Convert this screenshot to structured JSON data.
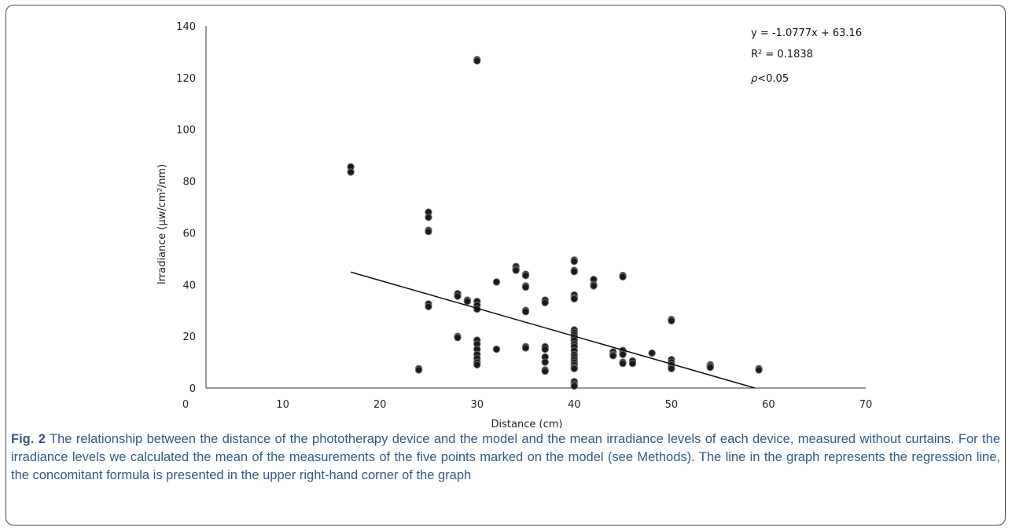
{
  "chart_data": {
    "type": "scatter",
    "title": "",
    "xlabel": "Distance (cm)",
    "ylabel": "Irradiance (µw/cm²/nm)",
    "xlim": [
      0,
      70
    ],
    "ylim": [
      0,
      140
    ],
    "x_ticks": [
      "0",
      "10",
      "20",
      "30",
      "40",
      "50",
      "60",
      "70"
    ],
    "y_ticks": [
      "0",
      "20",
      "40",
      "60",
      "80",
      "100",
      "120",
      "140"
    ],
    "grid": false,
    "legend": "none",
    "points": [
      [
        17,
        85.5
      ],
      [
        17,
        83.5
      ],
      [
        24,
        7.5
      ],
      [
        24,
        7
      ],
      [
        25,
        68
      ],
      [
        25,
        66
      ],
      [
        25,
        61
      ],
      [
        25,
        60.5
      ],
      [
        25,
        32.5
      ],
      [
        25,
        31.5
      ],
      [
        28,
        36.5
      ],
      [
        28,
        35.5
      ],
      [
        28,
        20
      ],
      [
        28,
        19.5
      ],
      [
        29,
        34
      ],
      [
        29,
        33.5
      ],
      [
        30,
        127
      ],
      [
        30,
        126.5
      ],
      [
        30,
        33.5
      ],
      [
        30,
        32
      ],
      [
        30,
        30.5
      ],
      [
        30,
        18.5
      ],
      [
        30,
        17
      ],
      [
        30,
        15
      ],
      [
        30,
        13
      ],
      [
        30,
        11.5
      ],
      [
        30,
        10
      ],
      [
        30,
        9
      ],
      [
        32,
        41
      ],
      [
        32,
        15
      ],
      [
        34,
        47
      ],
      [
        34,
        46
      ],
      [
        34,
        45.5
      ],
      [
        35,
        44
      ],
      [
        35,
        43.5
      ],
      [
        35,
        39.5
      ],
      [
        35,
        39
      ],
      [
        35,
        30
      ],
      [
        35,
        29.5
      ],
      [
        35,
        16
      ],
      [
        35,
        15.5
      ],
      [
        37,
        34
      ],
      [
        37,
        33
      ],
      [
        37,
        16
      ],
      [
        37,
        15
      ],
      [
        37,
        12
      ],
      [
        37,
        10
      ],
      [
        37,
        7
      ],
      [
        37,
        6.5
      ],
      [
        40,
        49.5
      ],
      [
        40,
        49
      ],
      [
        40,
        45.5
      ],
      [
        40,
        45
      ],
      [
        40,
        36
      ],
      [
        40,
        35
      ],
      [
        40,
        34.5
      ],
      [
        40,
        22.5
      ],
      [
        40,
        21.5
      ],
      [
        40,
        20.5
      ],
      [
        40,
        19.5
      ],
      [
        40,
        18.5
      ],
      [
        40,
        17
      ],
      [
        40,
        16
      ],
      [
        40,
        14.5
      ],
      [
        40,
        13
      ],
      [
        40,
        12
      ],
      [
        40,
        11
      ],
      [
        40,
        10
      ],
      [
        40,
        9
      ],
      [
        40,
        8
      ],
      [
        40,
        7.5
      ],
      [
        40,
        2.5
      ],
      [
        40,
        1.5
      ],
      [
        40,
        0.8
      ],
      [
        42,
        42
      ],
      [
        42,
        40
      ],
      [
        42,
        39.5
      ],
      [
        44,
        14
      ],
      [
        44,
        13
      ],
      [
        44,
        12.5
      ],
      [
        45,
        43.5
      ],
      [
        45,
        43
      ],
      [
        45,
        14.5
      ],
      [
        45,
        13.5
      ],
      [
        45,
        13
      ],
      [
        45,
        10
      ],
      [
        45,
        9.5
      ],
      [
        46,
        10.5
      ],
      [
        46,
        9.5
      ],
      [
        48,
        13.5
      ],
      [
        50,
        26.5
      ],
      [
        50,
        26
      ],
      [
        50,
        11
      ],
      [
        50,
        10
      ],
      [
        50,
        9
      ],
      [
        50,
        8
      ],
      [
        50,
        7.5
      ],
      [
        54,
        9
      ],
      [
        54,
        8.5
      ],
      [
        54,
        8
      ],
      [
        59,
        7.5
      ],
      [
        59,
        7
      ]
    ],
    "regression": {
      "slope": -1.0777,
      "intercept": 63.16,
      "x_start": 17,
      "x_end": 58.6,
      "equation_text": "y = -1.0777x + 63.16",
      "r2_text": "R² = 0.1838",
      "p_symbol": "ρ",
      "p_rest": "<0.05"
    },
    "colors": {
      "point": "#1a1a1a",
      "point_stroke": "#6d6d6d",
      "line": "#111111",
      "axis": "#333333"
    }
  },
  "caption": {
    "label": "Fig. 2",
    "text": "The relationship between the distance of the phototherapy device and the model and the mean irradiance levels of each device, measured without curtains. For the irradiance levels we calculated the mean of the measurements of the five points marked on the model (see Methods). The line in the graph represents the regression line, the concomitant formula is presented in the upper right-hand corner of the graph"
  }
}
